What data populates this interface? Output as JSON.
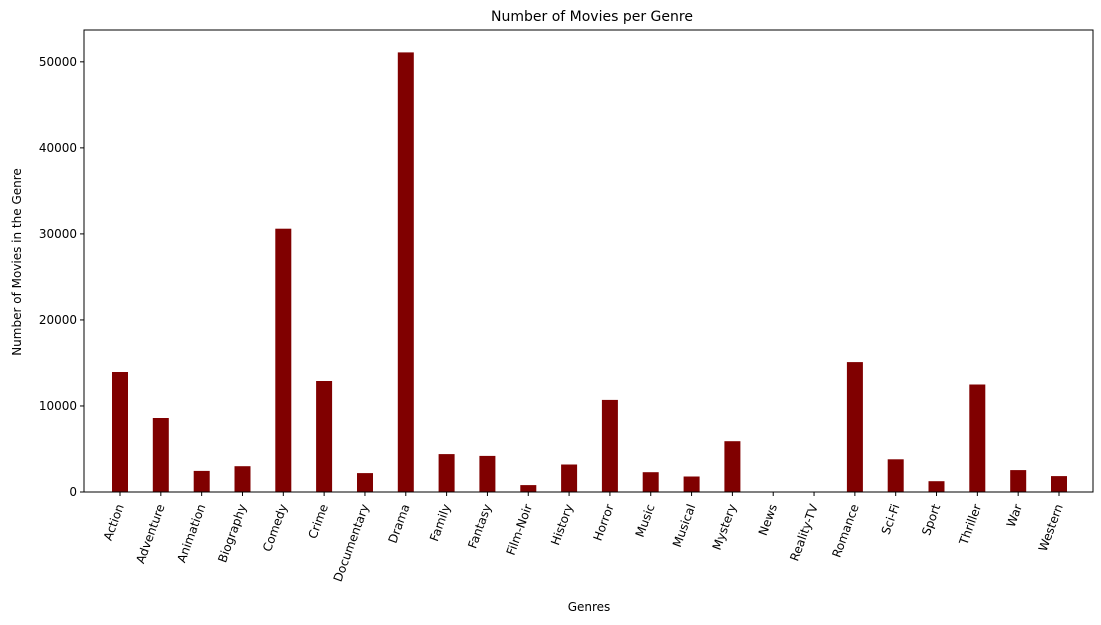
{
  "chart_data": {
    "type": "bar",
    "title": "Number of Movies per Genre",
    "xlabel": "Genres",
    "ylabel": "Number of Movies in the Genre",
    "categories": [
      "Action",
      "Adventure",
      "Animation",
      "Biography",
      "Comedy",
      "Crime",
      "Documentary",
      "Drama",
      "Family",
      "Fantasy",
      "Film-Noir",
      "History",
      "Horror",
      "Music",
      "Musical",
      "Mystery",
      "News",
      "Reality-TV",
      "Romance",
      "Sci-Fi",
      "Sport",
      "Thriller",
      "War",
      "Western"
    ],
    "values": [
      13950,
      8600,
      2450,
      3000,
      30600,
      12900,
      2200,
      51100,
      4400,
      4200,
      800,
      3200,
      10700,
      2300,
      1800,
      5900,
      20,
      5,
      15100,
      3800,
      1250,
      12500,
      2550,
      1850
    ],
    "yticks": [
      0,
      10000,
      20000,
      30000,
      40000,
      50000
    ],
    "ylim": [
      0,
      53700
    ],
    "bar_color": "#800000",
    "grid": false,
    "x_tick_rotation_deg": -70
  }
}
